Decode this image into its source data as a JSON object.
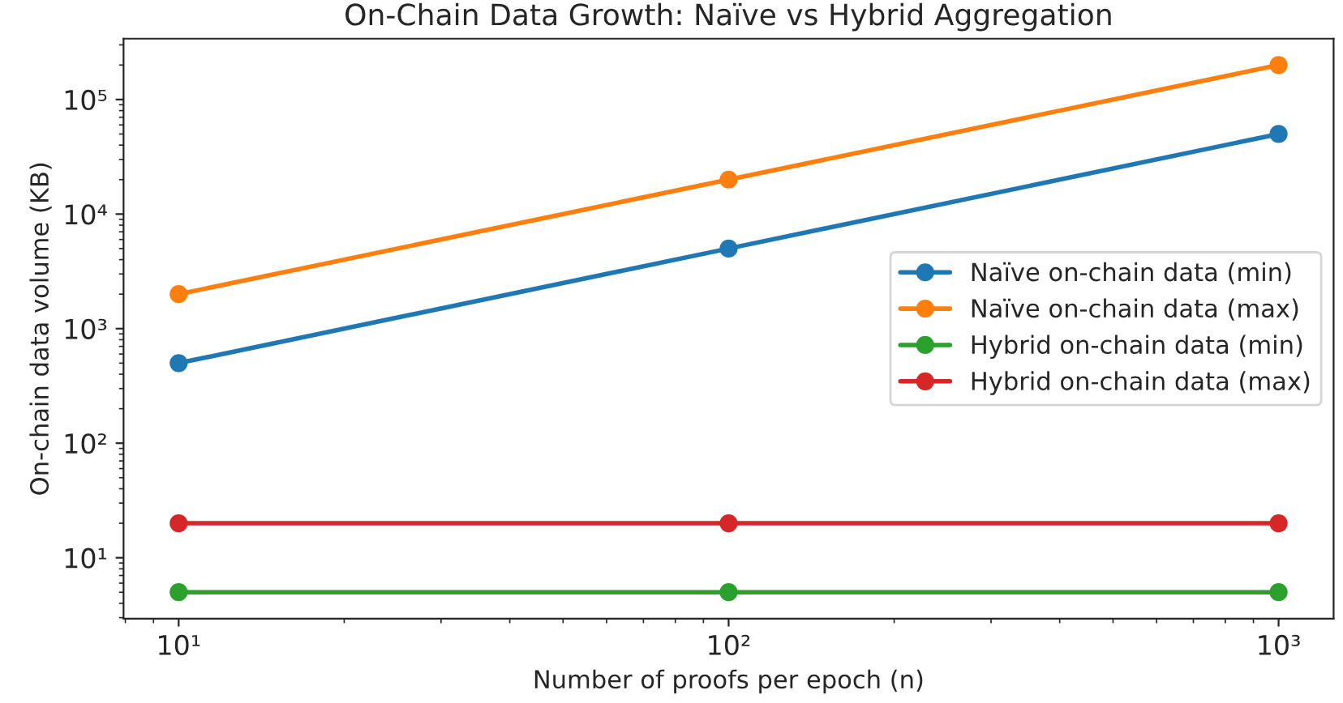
{
  "chart_data": {
    "type": "line",
    "title": "On-Chain Data Growth: Naïve vs Hybrid Aggregation",
    "xlabel": "Number of proofs per epoch (n)",
    "ylabel": "On-chain data volume (KB)",
    "x": [
      10,
      100,
      1000
    ],
    "series": [
      {
        "name": "Naïve on-chain data (min)",
        "color": "#1f77b4",
        "values": [
          500,
          5000,
          50000
        ]
      },
      {
        "name": "Naïve on-chain data (max)",
        "color": "#ff7f0e",
        "values": [
          2000,
          20000,
          200000
        ]
      },
      {
        "name": "Hybrid on-chain data (min)",
        "color": "#2ca02c",
        "values": [
          5,
          5,
          5
        ]
      },
      {
        "name": "Hybrid on-chain data (max)",
        "color": "#d62728",
        "values": [
          20,
          20,
          20
        ]
      }
    ],
    "log": "xy",
    "xlim": [
      7.94,
      1259
    ],
    "ylim": [
      2.94,
      339800
    ],
    "xticks": [
      {
        "value": 10,
        "label": "10¹"
      },
      {
        "value": 100,
        "label": "10²"
      },
      {
        "value": 1000,
        "label": "10³"
      }
    ],
    "yticks": [
      {
        "value": 10,
        "label": "10¹"
      },
      {
        "value": 100,
        "label": "10²"
      },
      {
        "value": 1000,
        "label": "10³"
      },
      {
        "value": 10000,
        "label": "10⁴"
      },
      {
        "value": 100000,
        "label": "10⁵"
      }
    ],
    "grid": false,
    "legend": "center right",
    "marker": "circle",
    "line_style": "solid"
  }
}
